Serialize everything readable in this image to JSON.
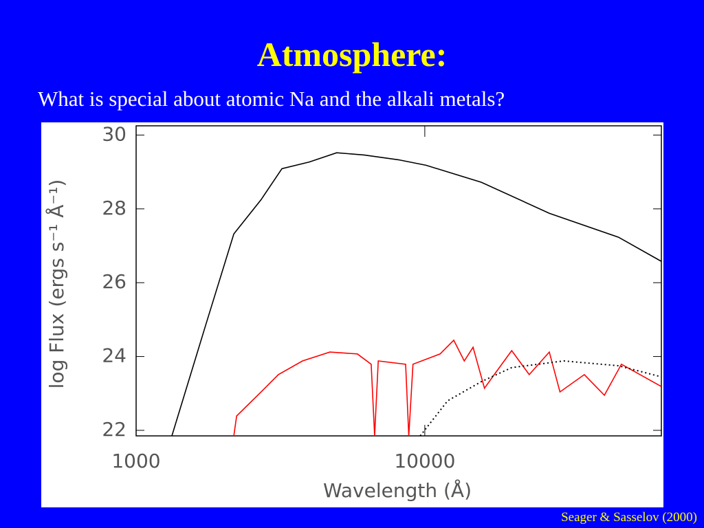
{
  "slide": {
    "title": "Atmosphere:",
    "subtitle": "What is special about atomic Na and the alkali metals?",
    "credit": "Seager & Sasselov (2000)"
  },
  "chart_data": {
    "type": "line",
    "x_label": "Wavelength (Å)",
    "y_label": "log Flux (ergs s⁻¹ Å⁻¹)",
    "xscale": "log",
    "xlim": [
      1000,
      66000
    ],
    "xticks": [
      1000,
      10000
    ],
    "ylim": [
      21.85,
      30.25
    ],
    "yticks": [
      22,
      24,
      26,
      28,
      30
    ],
    "series": [
      {
        "color": "#000000",
        "linestyle": "solid",
        "x": [
          1330,
          1750,
          2180,
          2710,
          3200,
          3980,
          4950,
          6160,
          8100,
          10100,
          15700,
          27000,
          46900,
          65900
        ],
        "values": [
          21.85,
          24.9,
          27.32,
          28.25,
          29.09,
          29.27,
          29.52,
          29.46,
          29.33,
          29.18,
          28.72,
          27.88,
          27.23,
          26.58
        ]
      },
      {
        "color": "#ff0000",
        "linestyle": "solid",
        "x": [
          2180,
          2230,
          2710,
          3110,
          3770,
          4690,
          5840,
          6520,
          6700,
          6900,
          8580,
          8800,
          9100,
          11300,
          12600,
          13700,
          14700,
          16100,
          17400,
          20000,
          23000,
          27000,
          29400,
          35700,
          41900,
          48000,
          65900
        ],
        "values": [
          21.85,
          22.39,
          23.04,
          23.51,
          23.88,
          24.12,
          24.07,
          23.79,
          21.85,
          23.88,
          23.79,
          21.85,
          23.79,
          24.07,
          24.44,
          23.88,
          24.25,
          23.14,
          23.51,
          24.16,
          23.51,
          24.12,
          23.04,
          23.51,
          22.95,
          23.79,
          23.19
        ]
      },
      {
        "color": "#000000",
        "linestyle": "dotted",
        "x": [
          9640,
          12000,
          15700,
          20000,
          30300,
          46900,
          65900
        ],
        "values": [
          21.85,
          22.8,
          23.32,
          23.7,
          23.88,
          23.75,
          23.45
        ]
      }
    ]
  }
}
